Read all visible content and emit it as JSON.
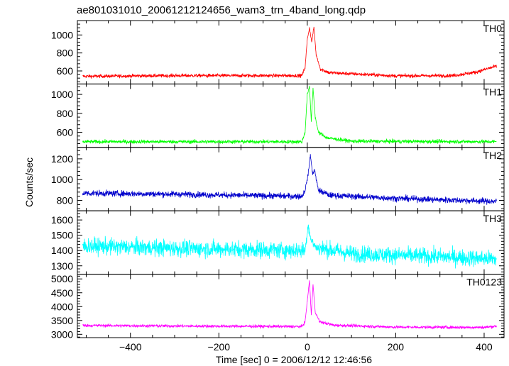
{
  "title": "ae801031010_20061212124656_wam3_trn_4band_long.qdp",
  "chart_data": {
    "type": "line",
    "title": "ae801031010_20061212124656_wam3_trn_4band_long.qdp",
    "xlabel": "Time [sec] 0 = 2006/12/12 12:46:56",
    "ylabel": "Counts/sec",
    "xlim": [
      -520,
      445
    ],
    "x_ticks": [
      -400,
      -200,
      0,
      200,
      400
    ],
    "panels": [
      {
        "name": "TH0",
        "color": "#ff0000",
        "ylim": [
          455,
          1160
        ],
        "y_ticks": [
          600,
          800,
          1000
        ],
        "profile": [
          {
            "t": -510,
            "v": 540
          },
          {
            "t": -300,
            "v": 548
          },
          {
            "t": -100,
            "v": 548
          },
          {
            "t": -12,
            "v": 548
          },
          {
            "t": -5,
            "v": 640
          },
          {
            "t": 0,
            "v": 950
          },
          {
            "t": 5,
            "v": 1080
          },
          {
            "t": 10,
            "v": 920
          },
          {
            "t": 15,
            "v": 1090
          },
          {
            "t": 20,
            "v": 780
          },
          {
            "t": 30,
            "v": 620
          },
          {
            "t": 50,
            "v": 580
          },
          {
            "t": 200,
            "v": 545
          },
          {
            "t": 330,
            "v": 548
          },
          {
            "t": 380,
            "v": 585
          },
          {
            "t": 425,
            "v": 650
          }
        ],
        "noise": 20
      },
      {
        "name": "TH1",
        "color": "#00ff00",
        "ylim": [
          440,
          1110
        ],
        "y_ticks": [
          600,
          800,
          1000
        ],
        "profile": [
          {
            "t": -510,
            "v": 500
          },
          {
            "t": -300,
            "v": 500
          },
          {
            "t": -12,
            "v": 500
          },
          {
            "t": -5,
            "v": 600
          },
          {
            "t": 0,
            "v": 1000
          },
          {
            "t": 5,
            "v": 1080
          },
          {
            "t": 9,
            "v": 720
          },
          {
            "t": 13,
            "v": 1070
          },
          {
            "t": 18,
            "v": 760
          },
          {
            "t": 25,
            "v": 600
          },
          {
            "t": 45,
            "v": 540
          },
          {
            "t": 100,
            "v": 505
          },
          {
            "t": 425,
            "v": 500
          }
        ],
        "noise": 20
      },
      {
        "name": "TH2",
        "color": "#0000cc",
        "ylim": [
          700,
          1310
        ],
        "y_ticks": [
          800,
          1000,
          1200
        ],
        "profile": [
          {
            "t": -510,
            "v": 870
          },
          {
            "t": -300,
            "v": 860
          },
          {
            "t": -100,
            "v": 845
          },
          {
            "t": -12,
            "v": 840
          },
          {
            "t": -5,
            "v": 900
          },
          {
            "t": 2,
            "v": 1050
          },
          {
            "t": 7,
            "v": 1240
          },
          {
            "t": 12,
            "v": 1050
          },
          {
            "t": 16,
            "v": 1100
          },
          {
            "t": 25,
            "v": 900
          },
          {
            "t": 50,
            "v": 850
          },
          {
            "t": 200,
            "v": 820
          },
          {
            "t": 425,
            "v": 790
          }
        ],
        "noise": 30
      },
      {
        "name": "TH3",
        "color": "#00ffff",
        "ylim": [
          1245,
          1660
        ],
        "y_ticks": [
          1300,
          1400,
          1500,
          1600
        ],
        "profile": [
          {
            "t": -510,
            "v": 1430
          },
          {
            "t": -300,
            "v": 1415
          },
          {
            "t": -100,
            "v": 1405
          },
          {
            "t": -5,
            "v": 1400
          },
          {
            "t": 2,
            "v": 1570
          },
          {
            "t": 8,
            "v": 1470
          },
          {
            "t": 20,
            "v": 1420
          },
          {
            "t": 100,
            "v": 1380
          },
          {
            "t": 300,
            "v": 1360
          },
          {
            "t": 425,
            "v": 1345
          }
        ],
        "noise": 55
      },
      {
        "name": "TH0123",
        "color": "#ff00ff",
        "ylim": [
          2880,
          5170
        ],
        "y_ticks": [
          3000,
          3500,
          4000,
          4500,
          5000
        ],
        "profile": [
          {
            "t": -510,
            "v": 3320
          },
          {
            "t": -300,
            "v": 3300
          },
          {
            "t": -12,
            "v": 3280
          },
          {
            "t": -5,
            "v": 3450
          },
          {
            "t": 0,
            "v": 4200
          },
          {
            "t": 5,
            "v": 4950
          },
          {
            "t": 9,
            "v": 3700
          },
          {
            "t": 13,
            "v": 4800
          },
          {
            "t": 18,
            "v": 3800
          },
          {
            "t": 28,
            "v": 3450
          },
          {
            "t": 60,
            "v": 3330
          },
          {
            "t": 200,
            "v": 3260
          },
          {
            "t": 400,
            "v": 3250
          },
          {
            "t": 425,
            "v": 3290
          }
        ],
        "noise": 55
      }
    ]
  }
}
